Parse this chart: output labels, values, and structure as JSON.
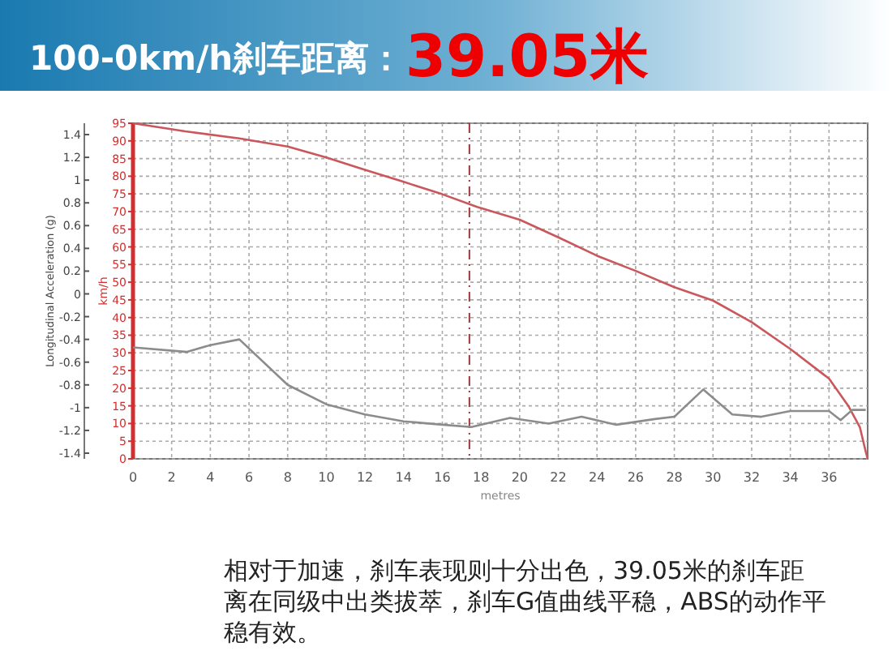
{
  "chart_data": {
    "type": "line",
    "title": "100-0km/h刹车距离：",
    "subtitle": "39.05米",
    "xlabel": "metres",
    "ylabel": "km/h",
    "y2label": "Longitudinal Acceleration (g)",
    "annotations": [
      "相对于加速，刹车表现则十分出色，39.05米的刹车距离在同级中出类拔萃，刹车G值曲线平稳，ABS的动作平稳有效。"
    ],
    "xlim": [
      0,
      38
    ],
    "xticks": [
      0,
      2,
      4,
      6,
      8,
      10,
      12,
      14,
      16,
      18,
      20,
      22,
      24,
      26,
      28,
      30,
      32,
      34,
      36
    ],
    "ylim": [
      0,
      95
    ],
    "yticks": [
      0,
      5,
      10,
      15,
      20,
      25,
      30,
      35,
      40,
      45,
      50,
      55,
      60,
      65,
      70,
      75,
      80,
      85,
      90,
      95
    ],
    "y2lim": [
      -1.45,
      1.5
    ],
    "y2ticks": [
      -1.4,
      -1.2,
      -1,
      -0.8,
      -0.6,
      -0.4,
      -0.2,
      0,
      0.2,
      0.4,
      0.6,
      0.8,
      1,
      1.2,
      1.4
    ],
    "grid": true,
    "marker": "none",
    "line_style": "solid",
    "ref_lines": [
      {
        "axis": "x",
        "value": 17.4,
        "color": "#9b3a3a",
        "line_style": "dashed"
      }
    ],
    "series": [
      {
        "color": "#c9575c",
        "x": [
          0,
          2.7,
          5.5,
          8,
          10,
          12,
          14,
          16,
          17.8,
          20,
          22,
          24,
          26,
          28,
          30,
          32,
          34,
          36,
          37,
          37.6,
          37.9,
          38
        ],
        "values": [
          95,
          92.7,
          90.7,
          88.4,
          85.3,
          81.8,
          78.4,
          74.9,
          71.3,
          67.7,
          62.7,
          57.5,
          53.2,
          48.6,
          44.8,
          38.7,
          31.1,
          22.7,
          15,
          8.9,
          2,
          0
        ]
      },
      {
        "color": "#8c8c8c",
        "axis": "y2",
        "x": [
          0,
          2.8,
          4,
          5.5,
          8,
          10,
          12,
          14,
          16,
          17.5,
          19.5,
          21.5,
          23.2,
          25,
          27,
          28,
          29.5,
          31,
          32.5,
          34,
          36,
          36.6,
          37.2,
          37.9
        ],
        "values": [
          -0.47,
          -0.51,
          -0.45,
          -0.4,
          -0.8,
          -0.97,
          -1.06,
          -1.12,
          -1.15,
          -1.17,
          -1.09,
          -1.14,
          -1.08,
          -1.15,
          -1.1,
          -1.08,
          -0.84,
          -1.06,
          -1.08,
          -1.03,
          -1.03,
          -1.11,
          -1.02,
          -1.02
        ]
      }
    ]
  }
}
